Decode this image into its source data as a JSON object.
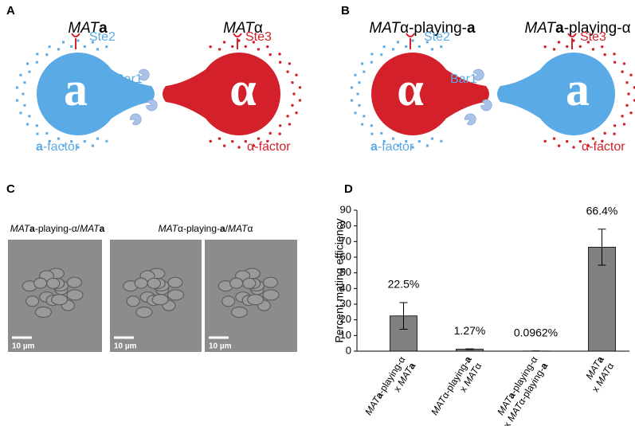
{
  "panel_a": {
    "label": "A",
    "left_title": [
      {
        "text": "MAT",
        "style": "italic"
      },
      {
        "text": "a",
        "style": "bold"
      }
    ],
    "right_title": [
      {
        "text": "MAT",
        "style": "italic"
      },
      {
        "text": "α",
        "style": "plain"
      }
    ],
    "left_cell": "a",
    "right_cell": "α",
    "ste2": "Ste2",
    "bar1": "Bar1",
    "ste3": "Ste3",
    "left_factor": [
      {
        "text": "a",
        "style": "bold"
      },
      {
        "text": "-factor",
        "style": "plain"
      }
    ],
    "right_factor": [
      {
        "text": "α-factor",
        "style": "plain"
      }
    ]
  },
  "panel_b": {
    "label": "B",
    "left_title": [
      {
        "text": "MAT",
        "style": "italic"
      },
      {
        "text": "α-playing-",
        "style": "plain"
      },
      {
        "text": "a",
        "style": "bold"
      }
    ],
    "right_title": [
      {
        "text": "MAT",
        "style": "italic"
      },
      {
        "text": "a",
        "style": "bold"
      },
      {
        "text": "-playing-α",
        "style": "plain"
      }
    ],
    "left_cell": "α",
    "right_cell": "a",
    "ste2": "Ste2",
    "bar1": "Bar1",
    "ste3": "Ste3",
    "left_factor": [
      {
        "text": "a",
        "style": "bold"
      },
      {
        "text": "-factor",
        "style": "plain"
      }
    ],
    "right_factor": [
      {
        "text": "α-factor",
        "style": "plain"
      }
    ]
  },
  "panel_c": {
    "label": "C",
    "left_caption": [
      {
        "text": "MAT",
        "style": "italic"
      },
      {
        "text": "a",
        "style": "bold"
      },
      {
        "text": "-playing-α/",
        "style": "plain"
      },
      {
        "text": "MAT",
        "style": "italic"
      },
      {
        "text": "a",
        "style": "bold"
      }
    ],
    "right_caption": [
      {
        "text": "MAT",
        "style": "italic"
      },
      {
        "text": "α-playing-",
        "style": "plain"
      },
      {
        "text": "a",
        "style": "bold"
      },
      {
        "text": "/",
        "style": "plain"
      },
      {
        "text": "MAT",
        "style": "italic"
      },
      {
        "text": "α",
        "style": "plain"
      }
    ],
    "scale_bars": [
      "10 µm",
      "10 µm",
      "10 µm"
    ]
  },
  "chart_data": {
    "type": "bar",
    "panel_label": "D",
    "y_label": "Percent mating efficiency",
    "categories": [
      [
        [
          {
            "text": "MAT",
            "style": "italic"
          },
          {
            "text": "a",
            "style": "bold"
          },
          {
            "text": "-playing-α",
            "style": "plain"
          }
        ],
        [
          {
            "text": "x ",
            "style": "plain"
          },
          {
            "text": "MAT",
            "style": "italic"
          },
          {
            "text": "a",
            "style": "bold"
          }
        ]
      ],
      [
        [
          {
            "text": "MAT",
            "style": "italic"
          },
          {
            "text": "α-playing-",
            "style": "plain"
          },
          {
            "text": "a",
            "style": "bold"
          }
        ],
        [
          {
            "text": "x ",
            "style": "plain"
          },
          {
            "text": "MAT",
            "style": "italic"
          },
          {
            "text": "α",
            "style": "plain"
          }
        ]
      ],
      [
        [
          {
            "text": "MAT",
            "style": "italic"
          },
          {
            "text": "a",
            "style": "bold"
          },
          {
            "text": "-playing-α",
            "style": "plain"
          }
        ],
        [
          {
            "text": "x ",
            "style": "plain"
          },
          {
            "text": "MAT",
            "style": "italic"
          },
          {
            "text": "α-playing-",
            "style": "plain"
          },
          {
            "text": "a",
            "style": "bold"
          }
        ]
      ],
      [
        [
          {
            "text": "MAT",
            "style": "italic"
          },
          {
            "text": "a",
            "style": "bold"
          }
        ],
        [
          {
            "text": "x ",
            "style": "plain"
          },
          {
            "text": "MAT",
            "style": "italic"
          },
          {
            "text": "α",
            "style": "plain"
          }
        ]
      ]
    ],
    "values": [
      22.5,
      1.27,
      0.0962,
      66.4
    ],
    "value_labels": [
      "22.5%",
      "1.27%",
      "0.0962%",
      "66.4%"
    ],
    "errors": [
      8.5,
      0.2,
      0.02,
      11.5
    ],
    "color": "#808080",
    "ylim": [
      0,
      90
    ],
    "yticks": [
      0,
      10,
      20,
      30,
      40,
      50,
      60,
      70,
      80,
      90
    ]
  }
}
